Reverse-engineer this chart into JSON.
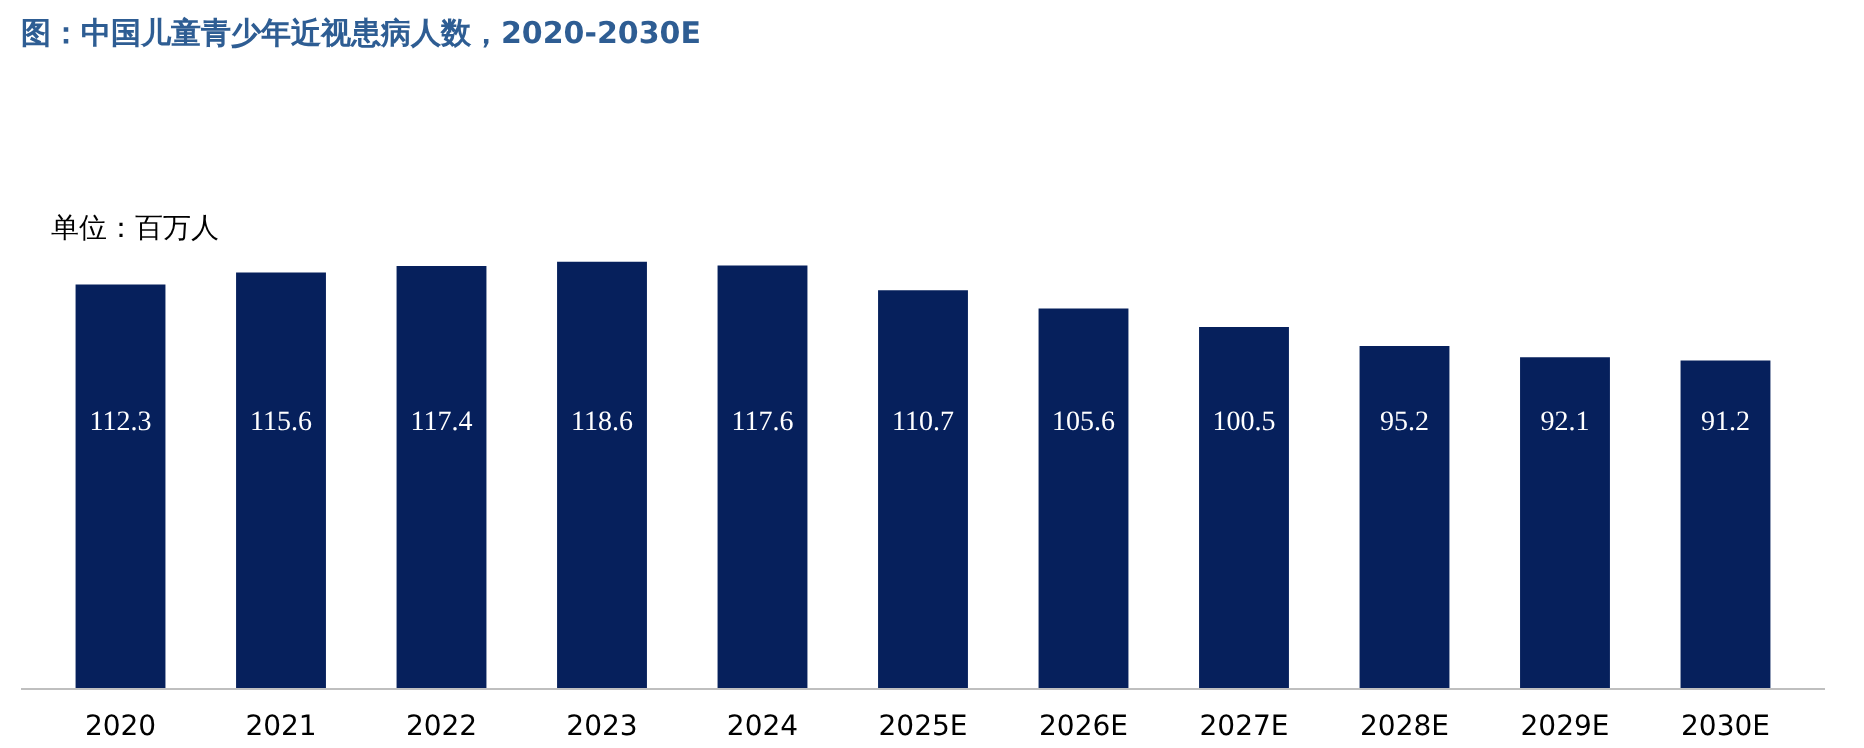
{
  "chart_data": {
    "type": "bar",
    "title": "图：中国儿童青少年近视患病人数，2020-2030E",
    "categories": [
      "2020",
      "2021",
      "2022",
      "2023",
      "2024",
      "2025E",
      "2026E",
      "2027E",
      "2028E",
      "2029E",
      "2030E"
    ],
    "values": [
      112.3,
      115.6,
      117.4,
      118.6,
      117.6,
      110.7,
      105.6,
      100.5,
      95.2,
      92.1,
      91.2
    ],
    "color": "#06205c",
    "data_labels": true,
    "annotations": [
      "单位：百万人"
    ]
  }
}
